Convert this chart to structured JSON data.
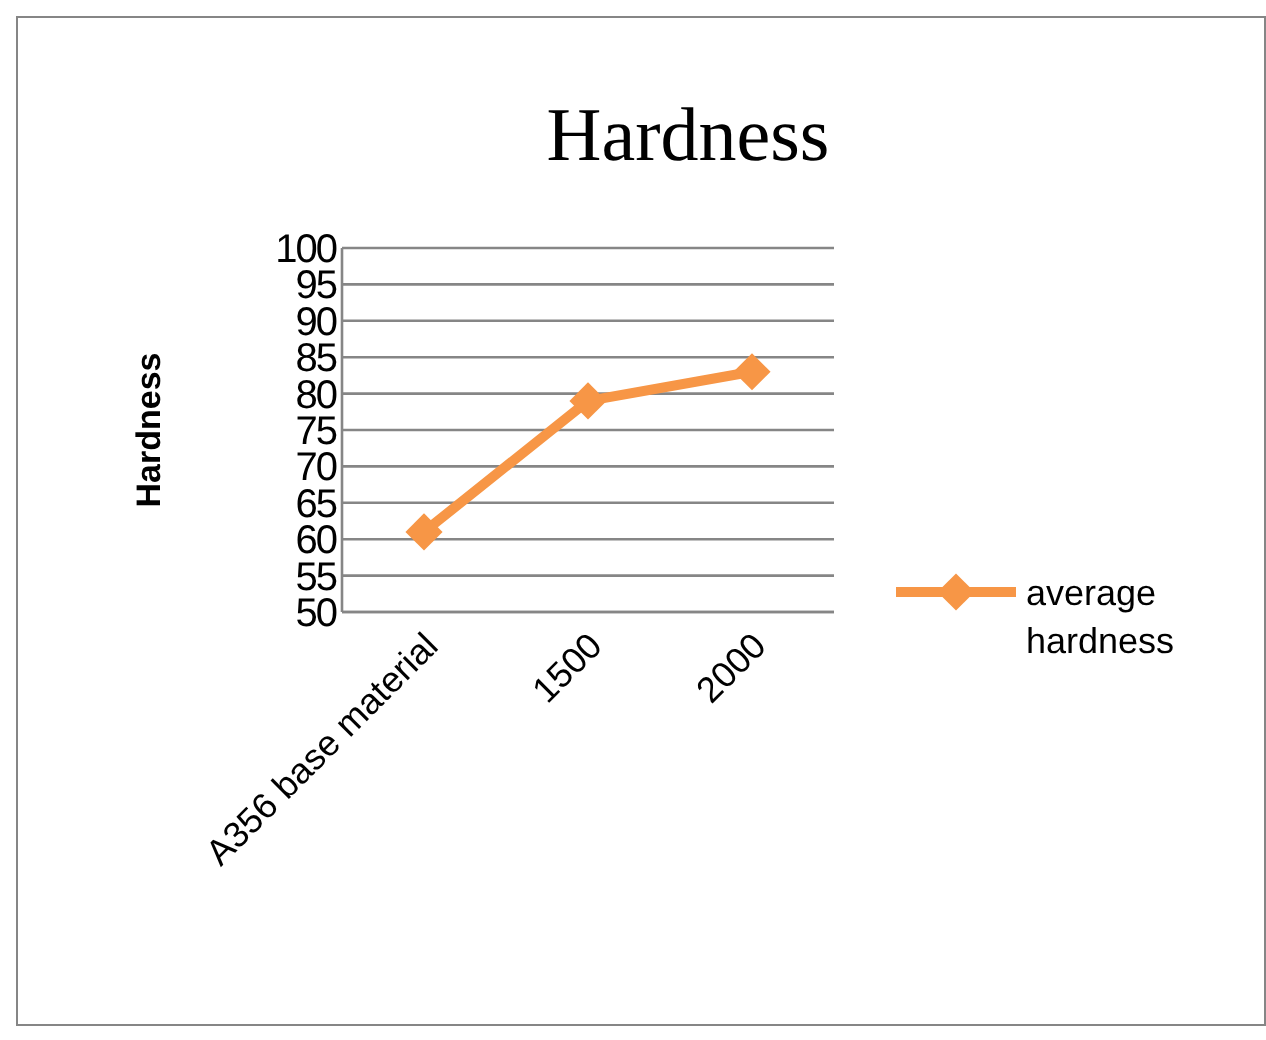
{
  "chart_data": {
    "type": "line",
    "title": "Hardness",
    "ylabel": "Hardness",
    "categories": [
      "A356 base material",
      "1500",
      "2000"
    ],
    "series": [
      {
        "name": "average hardness",
        "color": "#f79646",
        "values": [
          61,
          79,
          83
        ]
      }
    ],
    "ylim": [
      50,
      100
    ],
    "yticks": [
      50,
      55,
      60,
      65,
      70,
      75,
      80,
      85,
      90,
      95,
      100
    ],
    "grid": "y",
    "legend": "right",
    "marker": "diamond"
  }
}
